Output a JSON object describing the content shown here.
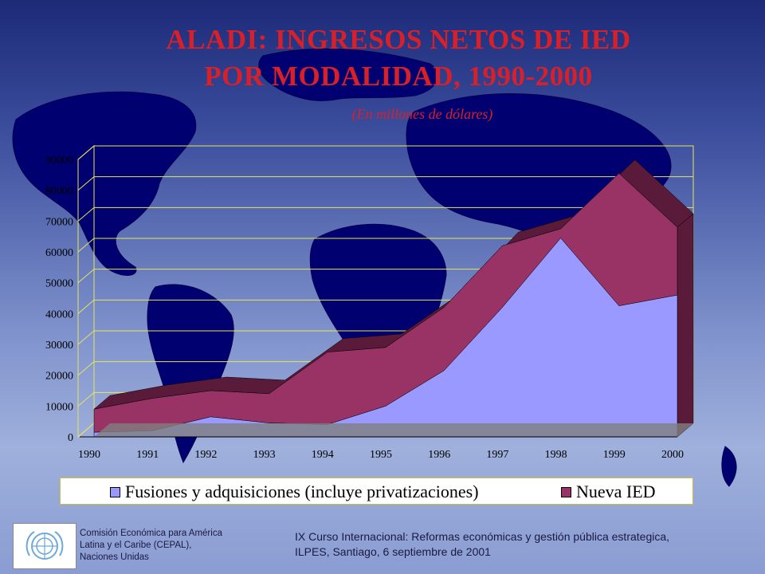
{
  "slide": {
    "title_line1": "ALADI: INGRESOS NETOS DE IED",
    "title_line2": "POR MODALIDAD, 1990-2000",
    "subtitle": "(En millones de dólares)"
  },
  "footer": {
    "org_line1": "Comisión Económica para América",
    "org_line2": "Latina y el Caribe (CEPAL),",
    "org_line3": "Naciones Unidas",
    "course_line1": "IX Curso Internacional: Reformas económicas y gestión pública estrategica,",
    "course_line2": "ILPES, Santiago, 6 septiembre de 2001",
    "logo_icon": "un-emblem-icon"
  },
  "colors": {
    "title": "#d8202a",
    "fusiones": "#9999ff",
    "nueva_ied": "#993366",
    "nueva_ied_top": "#5a1a3a",
    "plot_background": "#000080",
    "gridlines": "#e6e65a"
  },
  "chart_data": {
    "type": "area",
    "stacked": true,
    "three_d": true,
    "title": "ALADI: INGRESOS NETOS DE IED POR MODALIDAD, 1990-2000",
    "subtitle": "(En millones de dólares)",
    "xlabel": "",
    "ylabel": "",
    "categories": [
      "1990",
      "1991",
      "1992",
      "1993",
      "1994",
      "1995",
      "1996",
      "1997",
      "1998",
      "1999",
      "2000"
    ],
    "y_ticks": [
      "0",
      "10000",
      "20000",
      "30000",
      "40000",
      "50000",
      "60000",
      "70000",
      "80000",
      "90000"
    ],
    "ylim": [
      0,
      90000
    ],
    "grid": true,
    "legend_position": "bottom",
    "series": [
      {
        "name": "Fusiones y adquisiciones (incluye privatizaciones)",
        "values": [
          1500,
          2000,
          6500,
          4500,
          4000,
          10000,
          21500,
          42000,
          64500,
          42500,
          46000
        ]
      },
      {
        "name": "Nueva IED",
        "values": [
          7500,
          10500,
          8500,
          9500,
          23500,
          19000,
          20500,
          20000,
          3000,
          43000,
          22000
        ]
      }
    ]
  }
}
